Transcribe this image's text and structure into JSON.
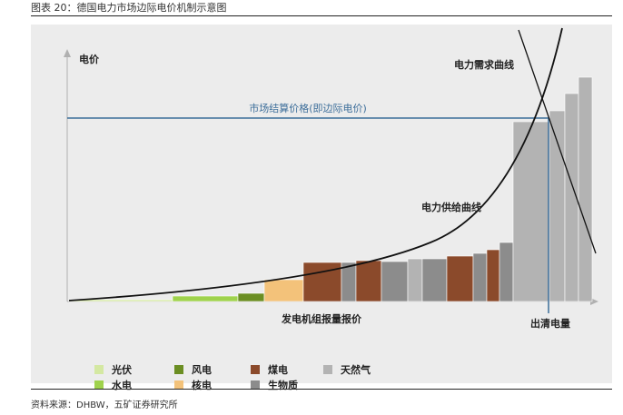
{
  "header": {
    "title": "图表 20：德国电力市场边际电价机制示意图"
  },
  "footer": {
    "source": "资料来源：DHBW，五矿证券研究所"
  },
  "diagram": {
    "y_axis_label": "电价",
    "x_axis_label": "发电机组报量报价",
    "clearing_price_label": "市场结算价格(即边际电价)",
    "demand_curve_label": "电力需求曲线",
    "supply_curve_label": "电力供给曲线",
    "clearing_quantity_label": "出清电量",
    "colors": {
      "solar": "#d4e8a2",
      "hydro": "#9fd24c",
      "wind": "#6b8e23",
      "nuclear": "#f3c27a",
      "coal": "#8b4a2b",
      "biomass": "#8c8c8c",
      "gas": "#b3b3b3",
      "price_line": "#3d6e9a"
    }
  },
  "legend": [
    {
      "label": "光伏",
      "color_key": "solar"
    },
    {
      "label": "水电",
      "color_key": "hydro"
    },
    {
      "label": "风电",
      "color_key": "wind"
    },
    {
      "label": "核电",
      "color_key": "nuclear"
    },
    {
      "label": "煤电",
      "color_key": "coal"
    },
    {
      "label": "生物质",
      "color_key": "biomass"
    },
    {
      "label": "天然气",
      "color_key": "gas"
    }
  ]
}
